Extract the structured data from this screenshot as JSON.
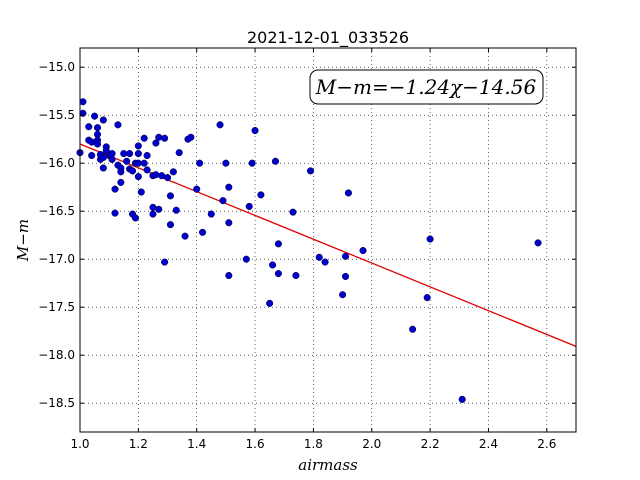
{
  "chart_data": {
    "type": "scatter",
    "title": "2021-12-01_033526",
    "xlabel": "airmass",
    "ylabel": "M−m",
    "xlim": [
      1.0,
      2.7
    ],
    "ylim": [
      -18.8,
      -14.8
    ],
    "xticks": [
      1.0,
      1.2,
      1.4,
      1.6,
      1.8,
      2.0,
      2.2,
      2.4,
      2.6
    ],
    "xtick_labels": [
      "1.0",
      "1.2",
      "1.4",
      "1.6",
      "1.8",
      "2.0",
      "2.2",
      "2.4",
      "2.6"
    ],
    "yticks": [
      -15.0,
      -15.5,
      -16.0,
      -16.5,
      -17.0,
      -17.5,
      -18.0,
      -18.5
    ],
    "ytick_labels": [
      "−15.0",
      "−15.5",
      "−16.0",
      "−16.5",
      "−17.0",
      "−17.5",
      "−18.0",
      "−18.5"
    ],
    "grid": true,
    "point_color": "#0000cc",
    "fit_color": "#e00000",
    "annotation": "M−m=−1.24χ−14.56",
    "fit": {
      "slope": -1.24,
      "intercept": -14.56
    },
    "points": [
      [
        1.0,
        -15.89
      ],
      [
        1.01,
        -15.48
      ],
      [
        1.01,
        -15.36
      ],
      [
        1.03,
        -15.62
      ],
      [
        1.03,
        -15.76
      ],
      [
        1.04,
        -15.78
      ],
      [
        1.04,
        -15.92
      ],
      [
        1.05,
        -15.51
      ],
      [
        1.06,
        -15.63
      ],
      [
        1.06,
        -15.7
      ],
      [
        1.06,
        -15.76
      ],
      [
        1.06,
        -15.8
      ],
      [
        1.07,
        -15.91
      ],
      [
        1.07,
        -15.96
      ],
      [
        1.08,
        -15.55
      ],
      [
        1.08,
        -15.94
      ],
      [
        1.08,
        -16.05
      ],
      [
        1.09,
        -15.83
      ],
      [
        1.09,
        -15.87
      ],
      [
        1.1,
        -15.92
      ],
      [
        1.11,
        -15.96
      ],
      [
        1.11,
        -15.9
      ],
      [
        1.12,
        -16.27
      ],
      [
        1.12,
        -16.52
      ],
      [
        1.13,
        -15.6
      ],
      [
        1.13,
        -16.02
      ],
      [
        1.14,
        -16.05
      ],
      [
        1.14,
        -16.09
      ],
      [
        1.14,
        -16.2
      ],
      [
        1.15,
        -15.9
      ],
      [
        1.16,
        -15.98
      ],
      [
        1.17,
        -15.9
      ],
      [
        1.17,
        -16.06
      ],
      [
        1.18,
        -16.08
      ],
      [
        1.18,
        -16.53
      ],
      [
        1.19,
        -16.0
      ],
      [
        1.19,
        -16.57
      ],
      [
        1.2,
        -15.9
      ],
      [
        1.2,
        -16.0
      ],
      [
        1.2,
        -16.14
      ],
      [
        1.2,
        -15.82
      ],
      [
        1.21,
        -16.3
      ],
      [
        1.22,
        -15.74
      ],
      [
        1.22,
        -16.0
      ],
      [
        1.23,
        -15.92
      ],
      [
        1.23,
        -16.07
      ],
      [
        1.25,
        -16.13
      ],
      [
        1.25,
        -16.46
      ],
      [
        1.25,
        -16.53
      ],
      [
        1.26,
        -16.12
      ],
      [
        1.26,
        -15.79
      ],
      [
        1.27,
        -15.73
      ],
      [
        1.27,
        -16.48
      ],
      [
        1.28,
        -16.13
      ],
      [
        1.29,
        -15.74
      ],
      [
        1.29,
        -17.03
      ],
      [
        1.3,
        -16.15
      ],
      [
        1.31,
        -16.64
      ],
      [
        1.31,
        -16.34
      ],
      [
        1.32,
        -16.09
      ],
      [
        1.33,
        -16.49
      ],
      [
        1.34,
        -15.89
      ],
      [
        1.36,
        -16.76
      ],
      [
        1.37,
        -15.75
      ],
      [
        1.38,
        -15.73
      ],
      [
        1.4,
        -16.27
      ],
      [
        1.41,
        -16.0
      ],
      [
        1.42,
        -16.72
      ],
      [
        1.45,
        -16.53
      ],
      [
        1.48,
        -15.6
      ],
      [
        1.49,
        -16.39
      ],
      [
        1.5,
        -16.0
      ],
      [
        1.51,
        -16.25
      ],
      [
        1.51,
        -16.62
      ],
      [
        1.51,
        -17.17
      ],
      [
        1.57,
        -17.0
      ],
      [
        1.58,
        -16.45
      ],
      [
        1.59,
        -16.0
      ],
      [
        1.6,
        -15.66
      ],
      [
        1.62,
        -16.33
      ],
      [
        1.65,
        -17.46
      ],
      [
        1.66,
        -17.06
      ],
      [
        1.67,
        -15.98
      ],
      [
        1.68,
        -16.84
      ],
      [
        1.68,
        -17.15
      ],
      [
        1.73,
        -16.51
      ],
      [
        1.74,
        -17.17
      ],
      [
        1.79,
        -16.08
      ],
      [
        1.82,
        -16.98
      ],
      [
        1.84,
        -17.03
      ],
      [
        1.9,
        -17.37
      ],
      [
        1.91,
        -16.97
      ],
      [
        1.91,
        -17.18
      ],
      [
        1.92,
        -16.31
      ],
      [
        1.97,
        -16.91
      ],
      [
        2.14,
        -17.73
      ],
      [
        2.19,
        -17.4
      ],
      [
        2.2,
        -16.79
      ],
      [
        2.31,
        -18.46
      ],
      [
        2.57,
        -16.83
      ]
    ]
  }
}
